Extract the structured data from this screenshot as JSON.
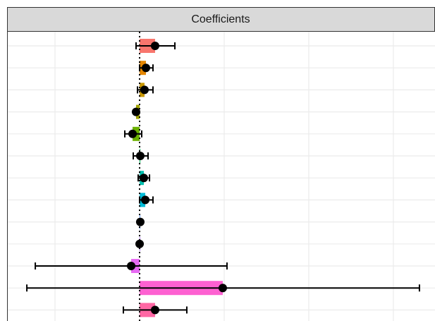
{
  "chart_data": {
    "type": "coefficient",
    "title": "Coefficients",
    "values": [
      0.183,
      0.075,
      0.058,
      -0.042,
      -0.083,
      0.008,
      0.05,
      0.067,
      0.008,
      0.0,
      -0.1,
      0.983,
      0.183
    ],
    "ci_low": [
      -0.042,
      0.0,
      -0.025,
      -0.05,
      -0.175,
      -0.075,
      -0.017,
      0.0,
      -0.008,
      -0.008,
      -1.233,
      -1.333,
      -0.192
    ],
    "ci_high": [
      0.417,
      0.158,
      0.158,
      -0.033,
      0.025,
      0.1,
      0.117,
      0.158,
      0.025,
      0.017,
      1.033,
      3.308,
      0.558
    ],
    "colors": [
      "#F8766D",
      "#E58700",
      "#C99800",
      "#A3A500",
      "#6BB100",
      "#00BD5C",
      "#00C0AF",
      "#00BCD8",
      "#619CFF",
      "#B983FF",
      "#E76BF3",
      "#FD61D1",
      "#FF67A4"
    ],
    "xlim": [
      -1.567,
      3.492
    ],
    "xticks": [
      -1,
      0,
      1,
      2,
      3
    ],
    "grid": true
  }
}
